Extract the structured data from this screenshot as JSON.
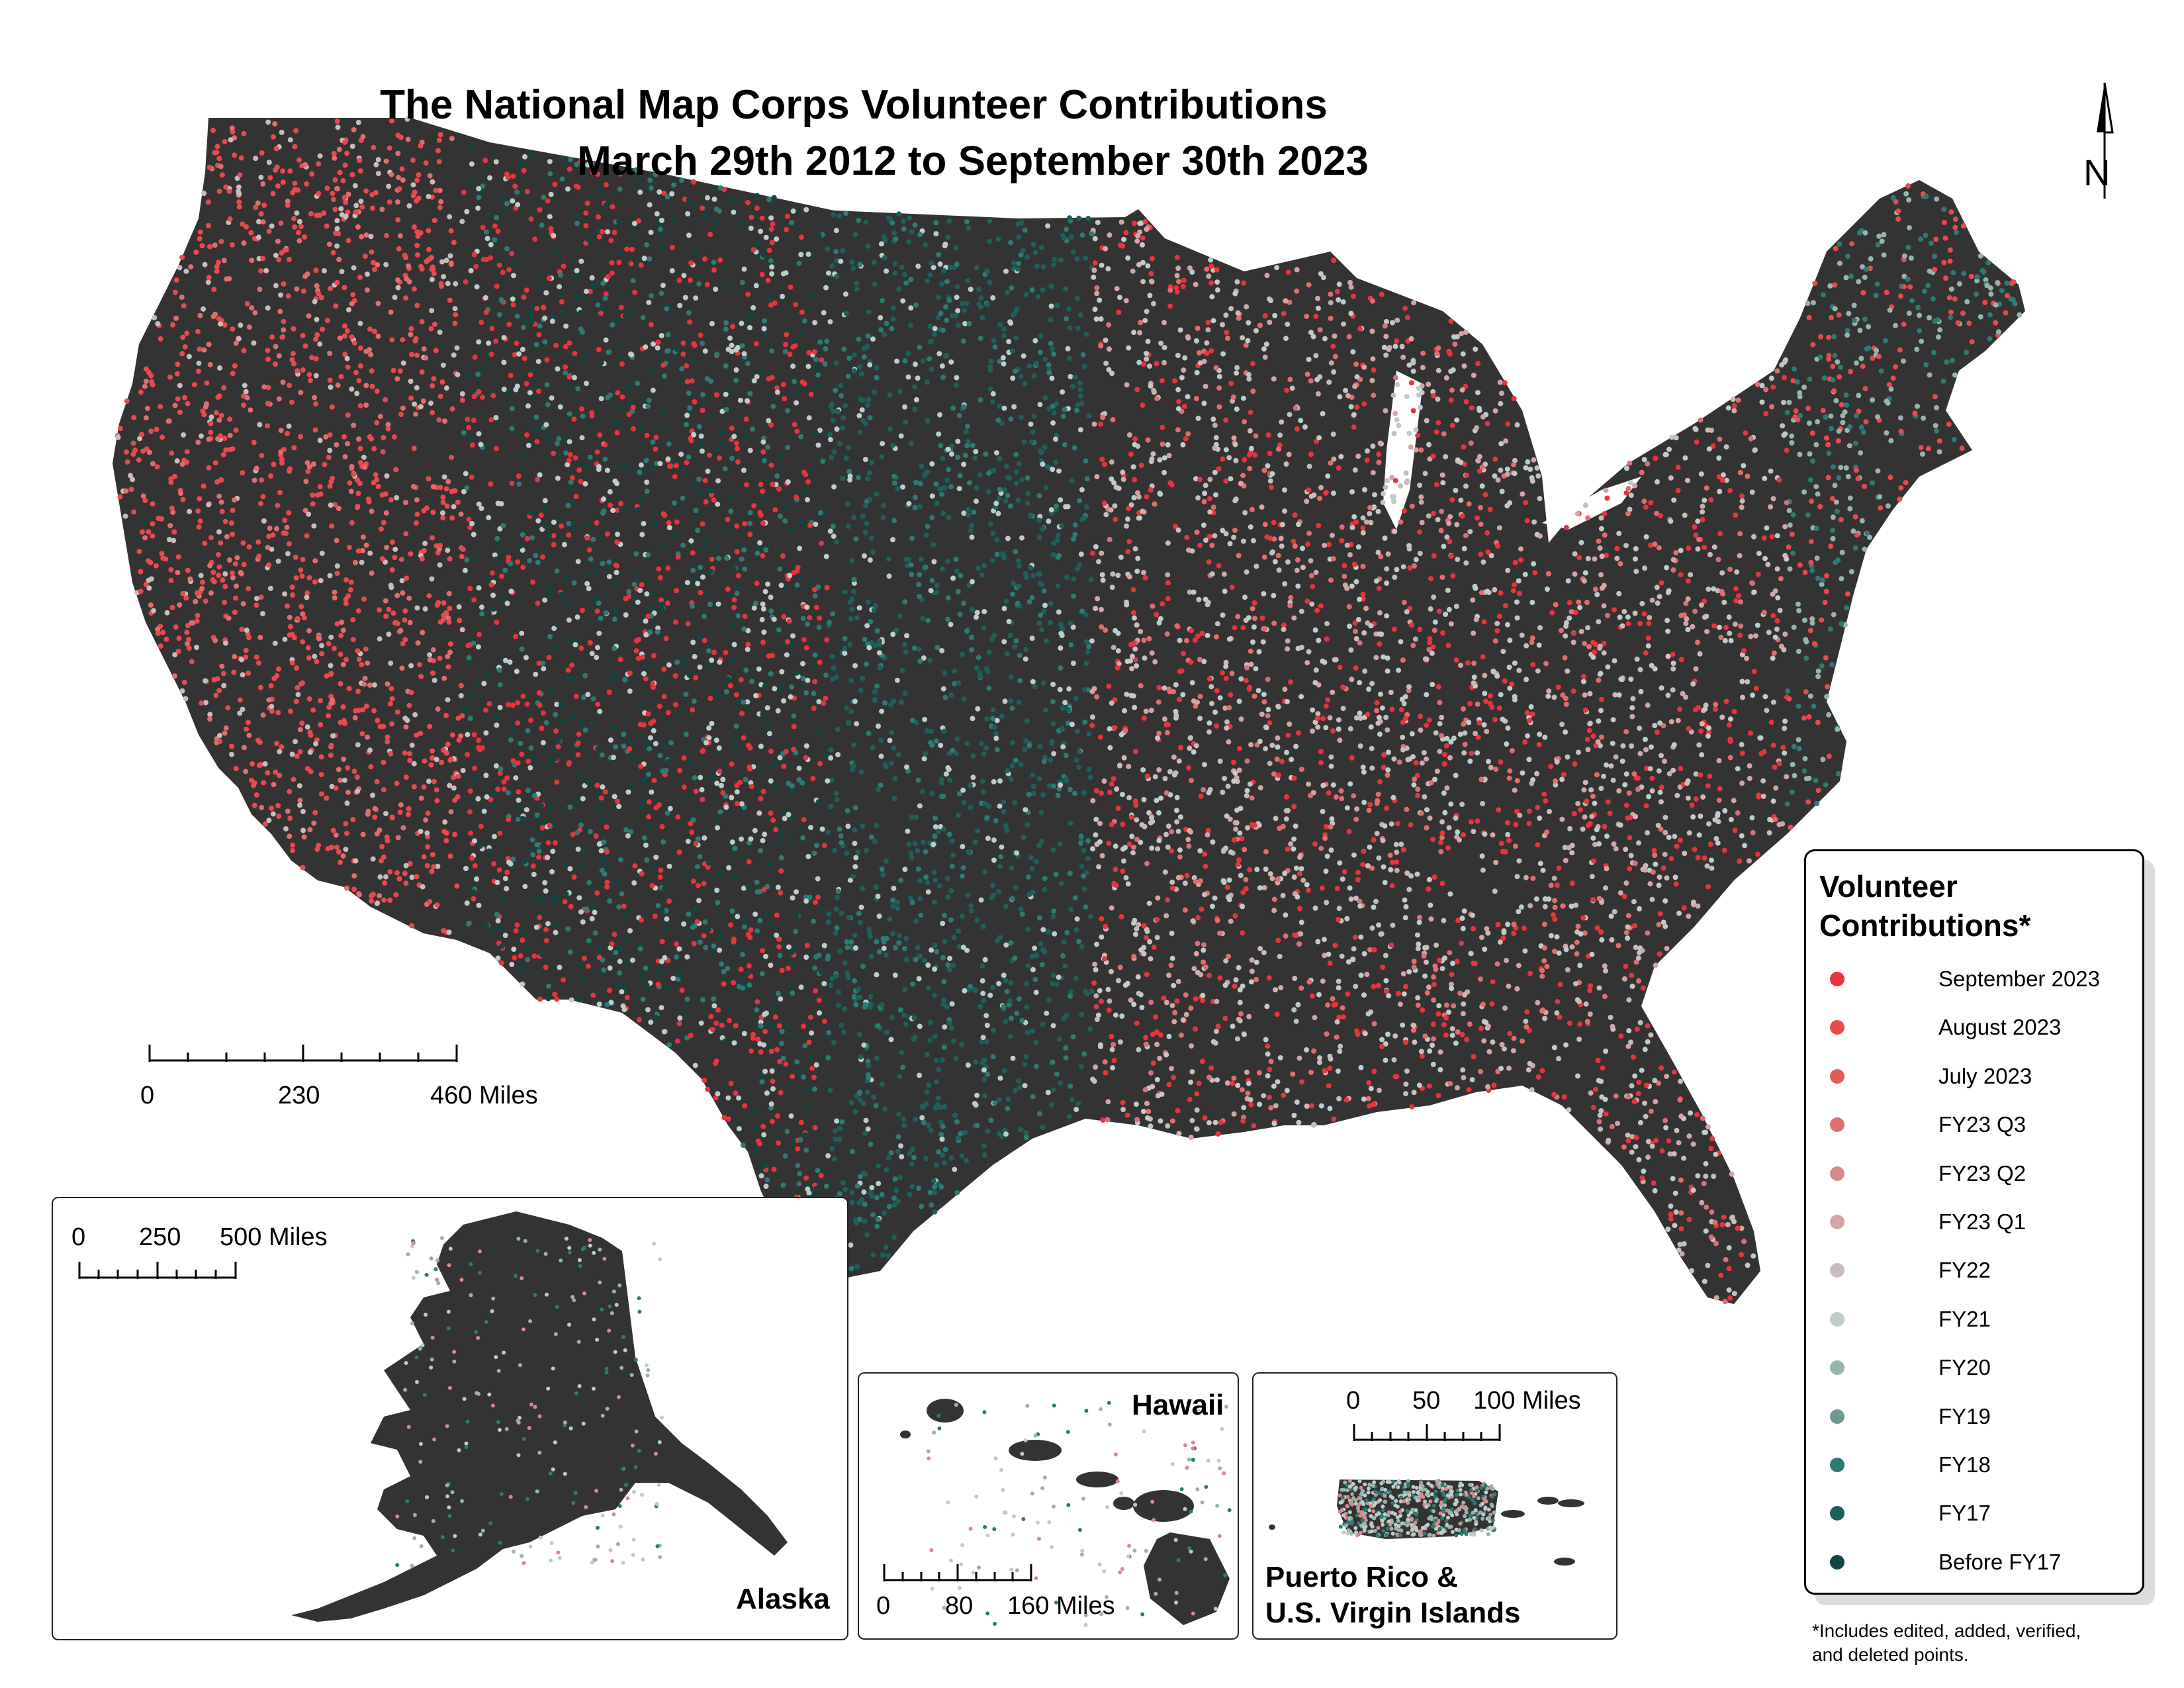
{
  "title": {
    "line1": "The National Map Corps Volunteer Contributions",
    "line2": "March 29th 2012 to September 30th 2023"
  },
  "north_arrow": {
    "letter": "N"
  },
  "scale_main": {
    "labels": [
      "0",
      "230",
      "460 Miles"
    ]
  },
  "insets": {
    "alaska": {
      "title": "Alaska",
      "scale_labels": [
        "0",
        "250",
        "500 Miles"
      ]
    },
    "hawaii": {
      "title": "Hawaii",
      "scale_labels": [
        "0",
        "80",
        "160 Miles"
      ]
    },
    "puerto_rico": {
      "title_line1": "Puerto Rico &",
      "title_line2": "U.S. Virgin Islands",
      "scale_labels": [
        "0",
        "50",
        "100 Miles"
      ]
    }
  },
  "legend": {
    "title_line1": "Volunteer",
    "title_line2": "Contributions*",
    "items": [
      {
        "label": "September 2023",
        "color": "#e8343d"
      },
      {
        "label": "August 2023",
        "color": "#e84a4f"
      },
      {
        "label": "July 2023",
        "color": "#e35a5c"
      },
      {
        "label": "FY23 Q3",
        "color": "#e06e70"
      },
      {
        "label": "FY23 Q2",
        "color": "#d88a8c"
      },
      {
        "label": "FY23 Q1",
        "color": "#d2a6a7"
      },
      {
        "label": "FY22",
        "color": "#c9bcbc"
      },
      {
        "label": "FY21",
        "color": "#bfccca"
      },
      {
        "label": "FY20",
        "color": "#97b5ad"
      },
      {
        "label": "FY19",
        "color": "#6a9a90"
      },
      {
        "label": "FY18",
        "color": "#2e7a74"
      },
      {
        "label": "FY17",
        "color": "#1e5f5c"
      },
      {
        "label": "Before FY17",
        "color": "#0f4644"
      }
    ]
  },
  "footnote": {
    "line1": "*Includes edited, added, verified,",
    "line2": "and deleted points."
  },
  "colors": {
    "land": "#333333",
    "state_border": "#5a5a5a"
  }
}
